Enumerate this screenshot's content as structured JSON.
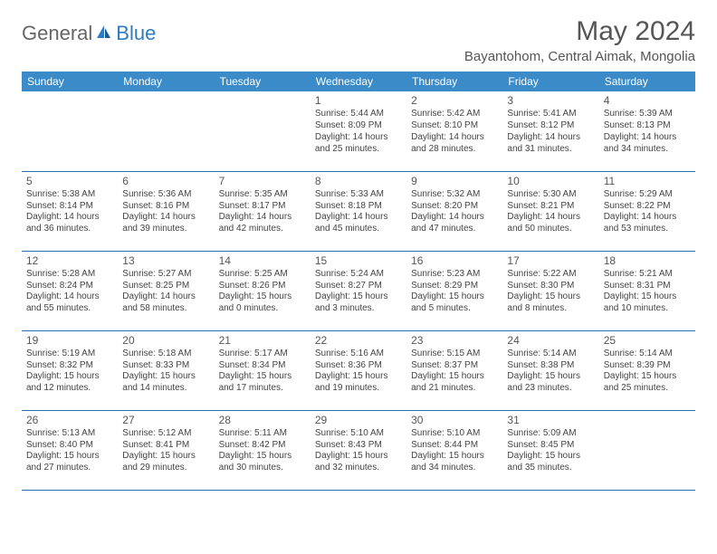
{
  "logo": {
    "part1": "General",
    "part2": "Blue"
  },
  "title": "May 2024",
  "location": "Bayantohom, Central Aimak, Mongolia",
  "colors": {
    "header_bg": "#3b8bc9",
    "header_text": "#ffffff",
    "border": "#2a6da8",
    "logo_gray": "#666666",
    "logo_blue": "#2d7bc0",
    "title_text": "#555555",
    "body_text": "#444444",
    "background": "#ffffff"
  },
  "typography": {
    "month_title_size": 30,
    "location_size": 15,
    "weekday_size": 12,
    "daynum_size": 12,
    "cell_size": 10,
    "logo_size": 22
  },
  "weekdays": [
    "Sunday",
    "Monday",
    "Tuesday",
    "Wednesday",
    "Thursday",
    "Friday",
    "Saturday"
  ],
  "weeks": [
    [
      null,
      null,
      null,
      {
        "n": "1",
        "sr": "Sunrise: 5:44 AM",
        "ss": "Sunset: 8:09 PM",
        "d1": "Daylight: 14 hours",
        "d2": "and 25 minutes."
      },
      {
        "n": "2",
        "sr": "Sunrise: 5:42 AM",
        "ss": "Sunset: 8:10 PM",
        "d1": "Daylight: 14 hours",
        "d2": "and 28 minutes."
      },
      {
        "n": "3",
        "sr": "Sunrise: 5:41 AM",
        "ss": "Sunset: 8:12 PM",
        "d1": "Daylight: 14 hours",
        "d2": "and 31 minutes."
      },
      {
        "n": "4",
        "sr": "Sunrise: 5:39 AM",
        "ss": "Sunset: 8:13 PM",
        "d1": "Daylight: 14 hours",
        "d2": "and 34 minutes."
      }
    ],
    [
      {
        "n": "5",
        "sr": "Sunrise: 5:38 AM",
        "ss": "Sunset: 8:14 PM",
        "d1": "Daylight: 14 hours",
        "d2": "and 36 minutes."
      },
      {
        "n": "6",
        "sr": "Sunrise: 5:36 AM",
        "ss": "Sunset: 8:16 PM",
        "d1": "Daylight: 14 hours",
        "d2": "and 39 minutes."
      },
      {
        "n": "7",
        "sr": "Sunrise: 5:35 AM",
        "ss": "Sunset: 8:17 PM",
        "d1": "Daylight: 14 hours",
        "d2": "and 42 minutes."
      },
      {
        "n": "8",
        "sr": "Sunrise: 5:33 AM",
        "ss": "Sunset: 8:18 PM",
        "d1": "Daylight: 14 hours",
        "d2": "and 45 minutes."
      },
      {
        "n": "9",
        "sr": "Sunrise: 5:32 AM",
        "ss": "Sunset: 8:20 PM",
        "d1": "Daylight: 14 hours",
        "d2": "and 47 minutes."
      },
      {
        "n": "10",
        "sr": "Sunrise: 5:30 AM",
        "ss": "Sunset: 8:21 PM",
        "d1": "Daylight: 14 hours",
        "d2": "and 50 minutes."
      },
      {
        "n": "11",
        "sr": "Sunrise: 5:29 AM",
        "ss": "Sunset: 8:22 PM",
        "d1": "Daylight: 14 hours",
        "d2": "and 53 minutes."
      }
    ],
    [
      {
        "n": "12",
        "sr": "Sunrise: 5:28 AM",
        "ss": "Sunset: 8:24 PM",
        "d1": "Daylight: 14 hours",
        "d2": "and 55 minutes."
      },
      {
        "n": "13",
        "sr": "Sunrise: 5:27 AM",
        "ss": "Sunset: 8:25 PM",
        "d1": "Daylight: 14 hours",
        "d2": "and 58 minutes."
      },
      {
        "n": "14",
        "sr": "Sunrise: 5:25 AM",
        "ss": "Sunset: 8:26 PM",
        "d1": "Daylight: 15 hours",
        "d2": "and 0 minutes."
      },
      {
        "n": "15",
        "sr": "Sunrise: 5:24 AM",
        "ss": "Sunset: 8:27 PM",
        "d1": "Daylight: 15 hours",
        "d2": "and 3 minutes."
      },
      {
        "n": "16",
        "sr": "Sunrise: 5:23 AM",
        "ss": "Sunset: 8:29 PM",
        "d1": "Daylight: 15 hours",
        "d2": "and 5 minutes."
      },
      {
        "n": "17",
        "sr": "Sunrise: 5:22 AM",
        "ss": "Sunset: 8:30 PM",
        "d1": "Daylight: 15 hours",
        "d2": "and 8 minutes."
      },
      {
        "n": "18",
        "sr": "Sunrise: 5:21 AM",
        "ss": "Sunset: 8:31 PM",
        "d1": "Daylight: 15 hours",
        "d2": "and 10 minutes."
      }
    ],
    [
      {
        "n": "19",
        "sr": "Sunrise: 5:19 AM",
        "ss": "Sunset: 8:32 PM",
        "d1": "Daylight: 15 hours",
        "d2": "and 12 minutes."
      },
      {
        "n": "20",
        "sr": "Sunrise: 5:18 AM",
        "ss": "Sunset: 8:33 PM",
        "d1": "Daylight: 15 hours",
        "d2": "and 14 minutes."
      },
      {
        "n": "21",
        "sr": "Sunrise: 5:17 AM",
        "ss": "Sunset: 8:34 PM",
        "d1": "Daylight: 15 hours",
        "d2": "and 17 minutes."
      },
      {
        "n": "22",
        "sr": "Sunrise: 5:16 AM",
        "ss": "Sunset: 8:36 PM",
        "d1": "Daylight: 15 hours",
        "d2": "and 19 minutes."
      },
      {
        "n": "23",
        "sr": "Sunrise: 5:15 AM",
        "ss": "Sunset: 8:37 PM",
        "d1": "Daylight: 15 hours",
        "d2": "and 21 minutes."
      },
      {
        "n": "24",
        "sr": "Sunrise: 5:14 AM",
        "ss": "Sunset: 8:38 PM",
        "d1": "Daylight: 15 hours",
        "d2": "and 23 minutes."
      },
      {
        "n": "25",
        "sr": "Sunrise: 5:14 AM",
        "ss": "Sunset: 8:39 PM",
        "d1": "Daylight: 15 hours",
        "d2": "and 25 minutes."
      }
    ],
    [
      {
        "n": "26",
        "sr": "Sunrise: 5:13 AM",
        "ss": "Sunset: 8:40 PM",
        "d1": "Daylight: 15 hours",
        "d2": "and 27 minutes."
      },
      {
        "n": "27",
        "sr": "Sunrise: 5:12 AM",
        "ss": "Sunset: 8:41 PM",
        "d1": "Daylight: 15 hours",
        "d2": "and 29 minutes."
      },
      {
        "n": "28",
        "sr": "Sunrise: 5:11 AM",
        "ss": "Sunset: 8:42 PM",
        "d1": "Daylight: 15 hours",
        "d2": "and 30 minutes."
      },
      {
        "n": "29",
        "sr": "Sunrise: 5:10 AM",
        "ss": "Sunset: 8:43 PM",
        "d1": "Daylight: 15 hours",
        "d2": "and 32 minutes."
      },
      {
        "n": "30",
        "sr": "Sunrise: 5:10 AM",
        "ss": "Sunset: 8:44 PM",
        "d1": "Daylight: 15 hours",
        "d2": "and 34 minutes."
      },
      {
        "n": "31",
        "sr": "Sunrise: 5:09 AM",
        "ss": "Sunset: 8:45 PM",
        "d1": "Daylight: 15 hours",
        "d2": "and 35 minutes."
      },
      null
    ]
  ]
}
